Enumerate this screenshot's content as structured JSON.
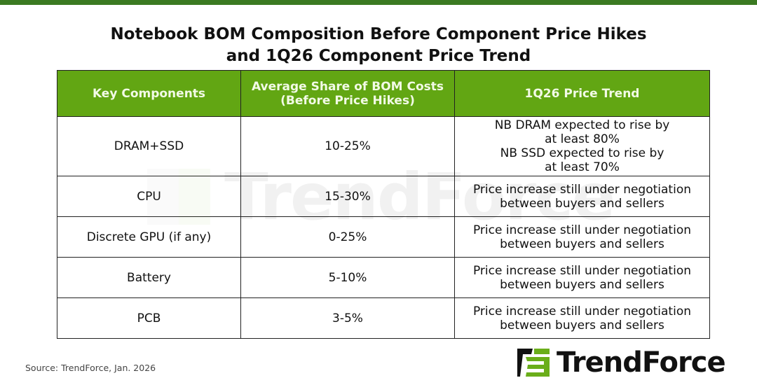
{
  "title_line1": "Notebook BOM Composition Before Component Price Hikes",
  "title_line2": "and 1Q26 Component Price Trend",
  "colors": {
    "header_fill": "#62a613",
    "top_bar": "#3b7a22",
    "logo_green": "#6aae1a"
  },
  "chart_data": {
    "type": "table",
    "title": "Notebook BOM Composition Before Component Price Hikes and 1Q26 Component Price Trend",
    "columns": [
      "Key Components",
      "Average Share of BOM Costs (Before Price Hikes)",
      "1Q26 Price Trend"
    ],
    "rows": [
      [
        "DRAM+SSD",
        "10-25%",
        "NB DRAM expected to rise by at least 80% NB SSD expected to rise by at least 70%"
      ],
      [
        "CPU",
        "15-30%",
        "Price increase still under negotiation between buyers and sellers"
      ],
      [
        "Discrete GPU (if any)",
        "0-25%",
        "Price increase still under negotiation between buyers and sellers"
      ],
      [
        "Battery",
        "5-10%",
        "Price increase still under negotiation between buyers and sellers"
      ],
      [
        "PCB",
        "3-5%",
        "Price increase still under negotiation between buyers and sellers"
      ]
    ]
  },
  "table": {
    "headers": {
      "col1": "Key Components",
      "col2_line1": "Average Share of BOM Costs",
      "col2_line2": "(Before Price Hikes)",
      "col3": "1Q26 Price Trend"
    },
    "rows": [
      {
        "component": "DRAM+SSD",
        "share": "10-25%",
        "trend": [
          "NB DRAM expected to rise by",
          "at least 80%",
          "NB SSD expected to rise by",
          "at least 70%"
        ]
      },
      {
        "component": "CPU",
        "share": "15-30%",
        "trend": [
          "Price increase still under negotiation",
          "between buyers and sellers"
        ]
      },
      {
        "component": "Discrete GPU (if any)",
        "share": "0-25%",
        "trend": [
          "Price increase still under negotiation",
          "between buyers and sellers"
        ]
      },
      {
        "component": "Battery",
        "share": "5-10%",
        "trend": [
          "Price increase still under negotiation",
          "between buyers and sellers"
        ]
      },
      {
        "component": "PCB",
        "share": "3-5%",
        "trend": [
          "Price increase still under negotiation",
          "between buyers and sellers"
        ]
      }
    ]
  },
  "source": "Source: TrendForce,  Jan. 2026",
  "logo_text": "TrendForce"
}
